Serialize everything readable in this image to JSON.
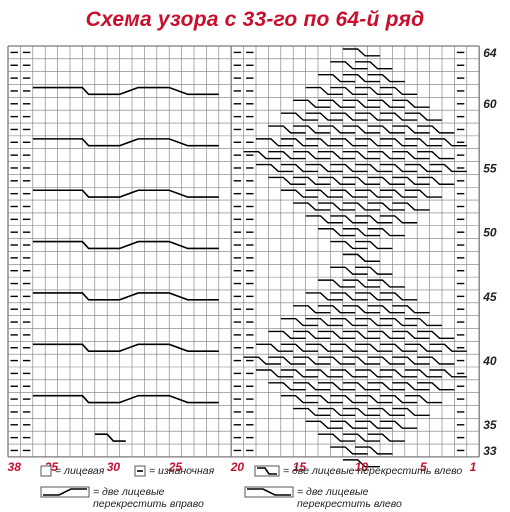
{
  "title": "Схема узора с 33-го по 64-й ряд",
  "axes": {
    "bottom_labels": [
      "38",
      "35",
      "30",
      "25",
      "20",
      "15",
      "10",
      "5",
      "1"
    ],
    "right_labels": [
      "64",
      "60",
      "55",
      "50",
      "45",
      "40",
      "35",
      "33"
    ]
  },
  "grid": {
    "columns": 38,
    "rows": 32,
    "first_row": 33,
    "last_row": 64
  },
  "legend": {
    "knit": "= лицевая",
    "purl": "= изнаночная",
    "cross_left_1": "= две лицевые перекрестить влево",
    "cross_right_2": "= две лицевые\nперекрестить вправо",
    "cross_left_2": "= две лицевые\nперекрестить влево"
  },
  "colors": {
    "title": "#c8102e",
    "axis_labels": "#c8102e",
    "grid": "#7a7a7a",
    "symbols": "#000000"
  }
}
